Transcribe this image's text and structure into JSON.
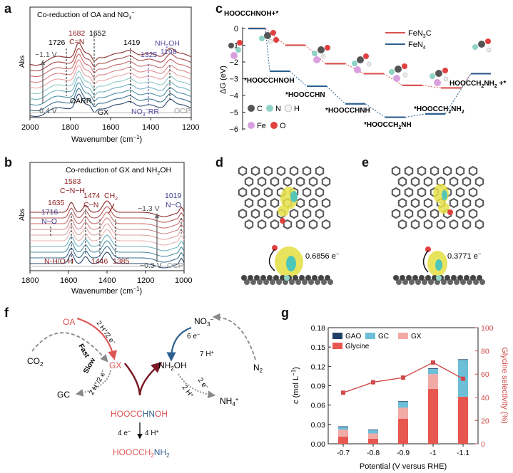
{
  "panels": {
    "a": {
      "label": "a",
      "title": "Co-reduction of OA and NO",
      "title_sup": "3",
      "title_suffix": "−",
      "ylabel": "Abs",
      "xlabel": "Wavenumber (cm",
      "xlabel_sup": "−1",
      "xlabel_end": ")",
      "xticks": [
        "2000",
        "1800",
        "1600",
        "1400",
        "1200"
      ],
      "annotations": {
        "p1682": "1682",
        "cn": "C=N",
        "p1652": "1652",
        "p1726": "1726",
        "p1419": "1419",
        "p1325": "1325",
        "nh2oh": "NH",
        "nh2oh_sub": "2",
        "nh2oh_end": "OH",
        "p1198": "1198",
        "v_top": "−1.1 V",
        "v_bot": "−0.4 V",
        "oarr": "OARR",
        "gx": "GX",
        "no3rr": "NO",
        "no3rr_sub": "3",
        "no3rr_sup": "−",
        "no3rr_end": "RR",
        "ocp": "OCP"
      }
    },
    "b": {
      "label": "b",
      "title": "Co-reduction of GX and NH",
      "title_sub": "2",
      "title_end": "OH",
      "ylabel": "Abs",
      "xlabel": "Wavenumber (cm",
      "xlabel_sup": "−1",
      "xlabel_end": ")",
      "xticks": [
        "1800",
        "1600",
        "1400",
        "1200",
        "1000"
      ],
      "annotations": {
        "p1583": "1583",
        "cnh": "C−N−H",
        "p1635": "1635",
        "p1474": "1474",
        "cn": "C−N",
        "ch2": "CH",
        "ch2_sub": "2",
        "p1716": "1716",
        "no": "N−O",
        "p1019": "1019",
        "no2": "N−O",
        "v_top": "−1.3 V",
        "v_bot": "−0.3 V",
        "nh": "N-H/O-H",
        "p1446": "1446",
        "p1385": "1385",
        "ocp": "OCP"
      }
    },
    "c": {
      "label": "c",
      "ylabel": "ΔG (eV)",
      "yticks": [
        "0",
        "−1",
        "−2",
        "−3",
        "−4",
        "−5",
        "−6"
      ],
      "legend": [
        {
          "name": "FeN",
          "sub": "3",
          "end": "C",
          "color": "#d9534f"
        },
        {
          "name": "FeN",
          "sub": "4",
          "end": "",
          "color": "#2d5f8f"
        }
      ],
      "species": {
        "s0": "HOOCCHNOH+*",
        "s1": "*HOOCCHNOH",
        "s2": "*HOOCCHN",
        "s3": "*HOOCCHNH",
        "s4": "*HOOCCH",
        "s4_sub": "2",
        "s4_end": "NH",
        "s5": "*HOOCCH",
        "s5_sub": "2",
        "s5_end": "NH",
        "s5_sub2": "2",
        "s6": "HOOCCH",
        "s6_sub": "2",
        "s6_end": "NH",
        "s6_sub2": "2",
        "s6_tail": " +*"
      },
      "atoms": [
        {
          "sym": "C",
          "color": "#555555"
        },
        {
          "sym": "N",
          "color": "#8fd3c7"
        },
        {
          "sym": "H",
          "color": "#f2f2f2"
        },
        {
          "sym": "Fe",
          "color": "#d9a0e0"
        },
        {
          "sym": "O",
          "color": "#e04040"
        }
      ]
    },
    "d": {
      "label": "d",
      "charge": "0.6856 e",
      "charge_sup": "−"
    },
    "e": {
      "label": "e",
      "charge": "0.3771 e",
      "charge_sup": "−"
    },
    "f": {
      "label": "f",
      "oa": "OA",
      "co2": "CO",
      "co2_sub": "2",
      "gx": "GX",
      "gc": "GC",
      "fast": "Fast",
      "slow": "Slow",
      "e_fast": "2 H",
      "e_fast_sup": "+",
      "e_fast_end": "/2 e",
      "e_slow": "2 H",
      "e_slow_sup": "+",
      "e_slow_end": "/2 e",
      "nh2oh": "NH",
      "nh2oh_sub": "2",
      "nh2oh_end": "OH",
      "no3": "NO",
      "no3_sub": "3",
      "n2": "N",
      "n2_sub": "2",
      "six_e": "6 e",
      "seven_h": "7 H",
      "two_e": "2 e",
      "two_h": "2 H",
      "nh4": "NH",
      "nh4_sub": "4",
      "nh4_sup": "+",
      "oxime_a": "HOOCC",
      "oxime_b": "HN",
      "oxime_c": "OH",
      "four_e": "4 e",
      "four_h": "4 H",
      "gly_a": "HOOCC",
      "gly_b": "H",
      "gly_sub1": "2",
      "gly_c": "NH",
      "gly_sub2": "2"
    },
    "g": {
      "label": "g",
      "ylabel_left": "c (mol L",
      "ylabel_left_sup": "−1",
      "ylabel_left_end": ")",
      "ylabel_right": "Glycine selectivity (%)",
      "xlabel": "Potential (V versus RHE)"
    }
  },
  "chart_data": {
    "type": "bar",
    "title": "",
    "xlabel": "Potential (V versus RHE)",
    "ylabel": "c (mol L−1)",
    "ylabel_right": "Glycine selectivity (%)",
    "categories": [
      "-0.7",
      "-0.8",
      "-0.9",
      "-1",
      "-1.1"
    ],
    "ylim": [
      0,
      0.18
    ],
    "yticks": [
      0,
      0.03,
      0.06,
      0.09,
      0.12,
      0.15,
      0.18
    ],
    "ylim_right": [
      0,
      100
    ],
    "yticks_right": [
      0,
      20,
      40,
      60,
      80,
      100
    ],
    "stacked": true,
    "legend_position": "top-left",
    "series": [
      {
        "name": "Glycine",
        "color": "#e8574f",
        "values": [
          0.011,
          0.008,
          0.039,
          0.085,
          0.073
        ]
      },
      {
        "name": "GX",
        "color": "#f2aaa6",
        "values": [
          0.011,
          0.008,
          0.017,
          0.023,
          0.0
        ]
      },
      {
        "name": "GC",
        "color": "#6dbfd8",
        "values": [
          0.004,
          0.005,
          0.009,
          0.008,
          0.057
        ]
      },
      {
        "name": "GAO",
        "color": "#1f3f66",
        "values": [
          0.001,
          0.001,
          0.001,
          0.001,
          0.001
        ]
      }
    ],
    "line_series": {
      "name": "Glycine selectivity",
      "color": "#d04a4a",
      "values": [
        44,
        53,
        57,
        70,
        56
      ]
    }
  }
}
